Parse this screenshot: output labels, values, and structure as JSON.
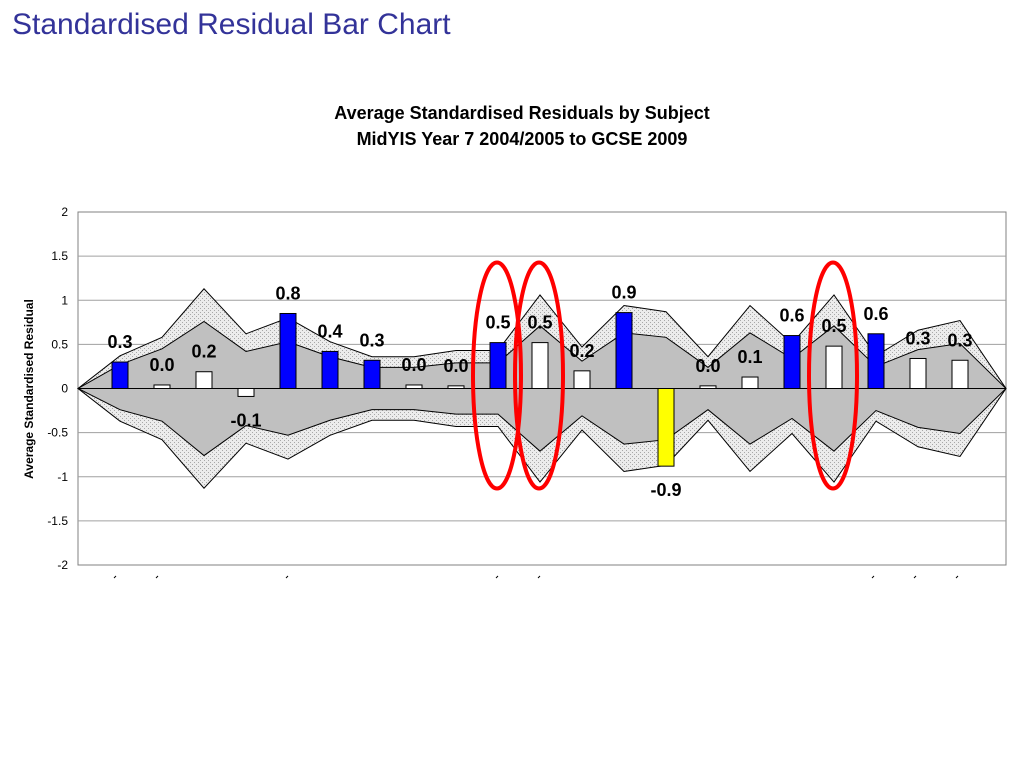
{
  "slide_title": "Standardised Residual Bar Chart",
  "chart_data": {
    "type": "bar",
    "title_line1": "Average Standardised Residuals by Subject",
    "title_line2": "MidYIS Year 7 2004/2005 to GCSE 2009",
    "xlabel": "",
    "ylabel": "Average Standardised Residual",
    "ylim": [
      -2,
      2
    ],
    "yticks": [
      2,
      1.5,
      1,
      0.5,
      0,
      -0.5,
      -1,
      -1.5,
      -2
    ],
    "grid": true,
    "legend": "none",
    "colors": {
      "significant_positive": "#0000ff",
      "not_significant": "#ffffff",
      "significant_negative": "#ffff00",
      "inner_band": "#c0c0c0",
      "outer_band": "#e6e6e6",
      "highlight_circle": "#ff0000"
    },
    "series": [
      {
        "values": [
          0.3,
          0.04,
          0.19,
          -0.09,
          0.85,
          0.42,
          0.32,
          0.04,
          0.03,
          0.52,
          0.52,
          0.2,
          0.86,
          -0.88,
          0.03,
          0.13,
          0.6,
          0.48,
          0.62,
          0.34,
          0.32
        ],
        "data_labels": [
          "0.3",
          "0.0",
          "0.2",
          "-0.1",
          "0.8",
          "0.4",
          "0.3",
          "0.0",
          "0.0",
          "0.5",
          "0.5",
          "0.2",
          "0.9",
          "-0.9",
          "0.0",
          "0.1",
          "0.6",
          "0.5",
          "0.6",
          "0.3",
          "0.3"
        ],
        "significance": [
          "positive",
          "none",
          "none",
          "none",
          "positive",
          "positive",
          "positive",
          "none",
          "none",
          "positive",
          "none",
          "none",
          "positive",
          "negative",
          "none",
          "none",
          "positive",
          "none",
          "positive",
          "none",
          "none"
        ]
      }
    ],
    "bands": {
      "inner_upper": [
        0.27,
        0.45,
        0.76,
        0.42,
        0.53,
        0.36,
        0.24,
        0.24,
        0.29,
        0.29,
        0.71,
        0.31,
        0.63,
        0.58,
        0.24,
        0.63,
        0.34,
        0.71,
        0.25,
        0.44,
        0.51
      ],
      "inner_lower": [
        -0.24,
        -0.37,
        -0.76,
        -0.42,
        -0.53,
        -0.36,
        -0.24,
        -0.24,
        -0.29,
        -0.29,
        -0.71,
        -0.31,
        -0.63,
        -0.58,
        -0.24,
        -0.63,
        -0.34,
        -0.71,
        -0.25,
        -0.44,
        -0.51
      ],
      "outer_upper": [
        0.37,
        0.58,
        1.13,
        0.62,
        0.8,
        0.53,
        0.36,
        0.36,
        0.43,
        0.43,
        1.06,
        0.47,
        0.94,
        0.87,
        0.36,
        0.94,
        0.51,
        1.06,
        0.37,
        0.66,
        0.77
      ],
      "outer_lower": [
        -0.37,
        -0.58,
        -1.13,
        -0.62,
        -0.8,
        -0.53,
        -0.36,
        -0.36,
        -0.43,
        -0.43,
        -1.06,
        -0.47,
        -0.94,
        -0.87,
        -0.36,
        -0.94,
        -0.51,
        -1.06,
        -0.37,
        -0.66,
        -0.77
      ]
    },
    "highlighted_bars": [
      9,
      10,
      17
    ]
  }
}
